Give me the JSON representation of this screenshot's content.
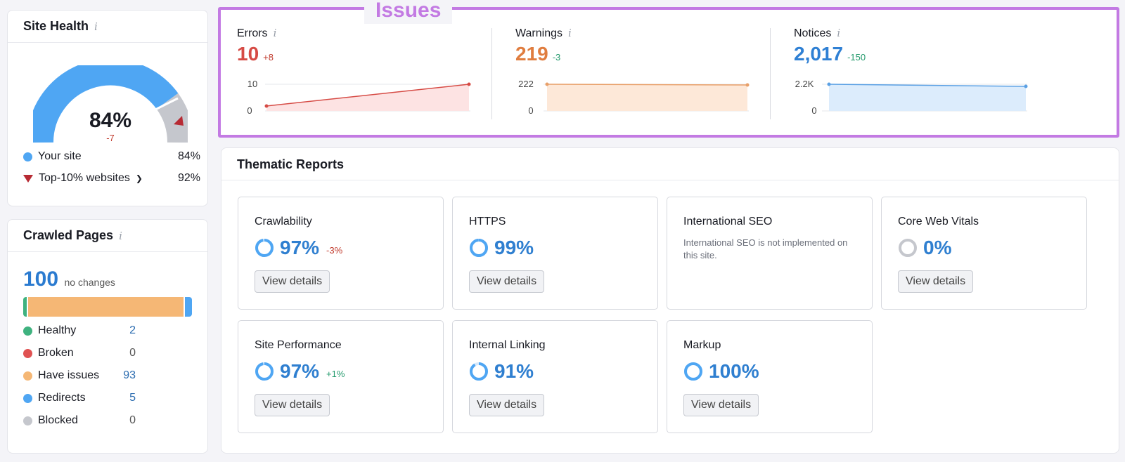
{
  "site_health": {
    "title": "Site Health",
    "info": "i",
    "value": "84%",
    "delta": "-7",
    "legend": [
      {
        "label": "Your site",
        "value": "84%",
        "color": "#4fa6f3"
      },
      {
        "label": "Top-10% websites",
        "value": "92%",
        "color": "#b72a33"
      }
    ]
  },
  "crawled": {
    "title": "Crawled Pages",
    "info": "i",
    "total": "100",
    "total_note": "no changes",
    "bar_shares": [
      2,
      0,
      93,
      5,
      0
    ],
    "rows": [
      {
        "label": "Healthy",
        "value": "2",
        "color": "#3fb27f"
      },
      {
        "label": "Broken",
        "value": "0",
        "color": "#e05252"
      },
      {
        "label": "Have issues",
        "value": "93",
        "color": "#f5b775"
      },
      {
        "label": "Redirects",
        "value": "5",
        "color": "#4fa6f3"
      },
      {
        "label": "Blocked",
        "value": "0",
        "color": "#c5c7cd"
      }
    ]
  },
  "issues": {
    "label": "Issues",
    "info": "i",
    "items": [
      {
        "label": "Errors",
        "value": "10",
        "delta": "+8",
        "color": "#d64b45",
        "ymax": "10",
        "ymin": "0"
      },
      {
        "label": "Warnings",
        "value": "219",
        "delta": "-3",
        "color": "#e07d3f",
        "ymax": "222",
        "ymin": "0"
      },
      {
        "label": "Notices",
        "value": "2,017",
        "delta": "-150",
        "color": "#2f80d4",
        "ymax": "2.2K",
        "ymin": "0"
      }
    ]
  },
  "thematic": {
    "title": "Thematic Reports",
    "view_details": "View details",
    "reports": [
      {
        "name": "Crawlability",
        "value": "97%",
        "delta": "-3%",
        "percent": 97
      },
      {
        "name": "HTTPS",
        "value": "99%",
        "delta": "",
        "percent": 99
      },
      {
        "name": "International SEO",
        "desc": "International SEO is not implemented on this site."
      },
      {
        "name": "Core Web Vitals",
        "value": "0%",
        "delta": "",
        "percent": 0
      },
      {
        "name": "Site Performance",
        "value": "97%",
        "delta": "+1%",
        "percent": 97
      },
      {
        "name": "Internal Linking",
        "value": "91%",
        "delta": "",
        "percent": 91
      },
      {
        "name": "Markup",
        "value": "100%",
        "delta": "",
        "percent": 100
      }
    ]
  }
}
